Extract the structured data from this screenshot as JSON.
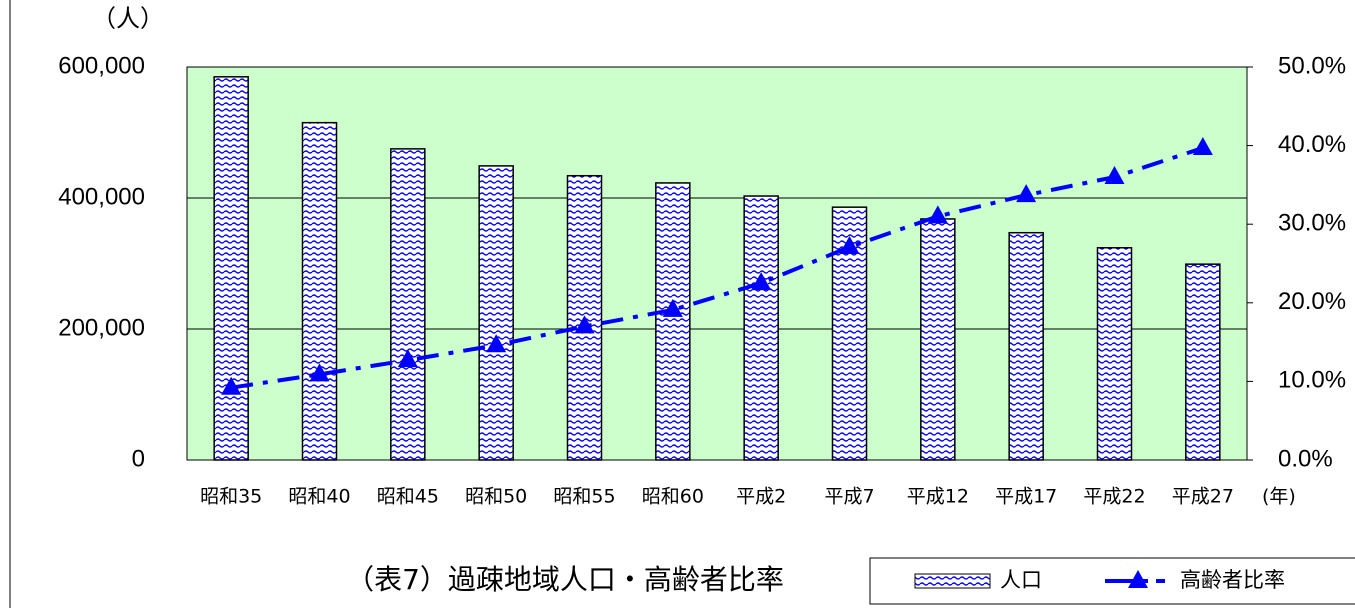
{
  "chart_data": {
    "type": "bar",
    "title": "（表7）過疎地域人口・高齢者比率",
    "y_label": "（人）",
    "x_label": "(年)",
    "categories": [
      "昭和35",
      "昭和40",
      "昭和45",
      "昭和50",
      "昭和55",
      "昭和60",
      "平成2",
      "平成7",
      "平成12",
      "平成17",
      "平成22",
      "平成27"
    ],
    "series": [
      {
        "name": "人口",
        "color": "#0000ff",
        "values": [
          585000,
          515000,
          475000,
          449000,
          434000,
          423000,
          403000,
          386000,
          368000,
          347000,
          324000,
          299000
        ]
      },
      {
        "name": "高齢者比率",
        "color": "#0000ff",
        "type": "line",
        "axis": "y2",
        "values": [
          9.2,
          10.9,
          12.7,
          14.6,
          17.0,
          19.1,
          22.5,
          27.1,
          31.0,
          33.7,
          36.0,
          39.7
        ]
      }
    ],
    "ylim": [
      0,
      600000
    ],
    "yticks": [
      0,
      {
        "value": 200000,
        "label": "200,000"
      },
      {
        "value": 400000,
        "label": "400,000"
      },
      {
        "value": 600000,
        "label": "600,000"
      }
    ],
    "y2lim": [
      0,
      50
    ],
    "y2ticks": [
      {
        "value": 0,
        "label": "0.0%"
      },
      {
        "value": 10,
        "label": "10.0%"
      },
      {
        "value": 20,
        "label": "20.0%"
      },
      {
        "value": 30,
        "label": "30.0%"
      },
      {
        "value": 40,
        "label": "40.0%"
      },
      {
        "value": 50,
        "label": "50.0%"
      }
    ],
    "grid": true,
    "plot_background": "#ccffcc",
    "legend": "bottom-right"
  }
}
